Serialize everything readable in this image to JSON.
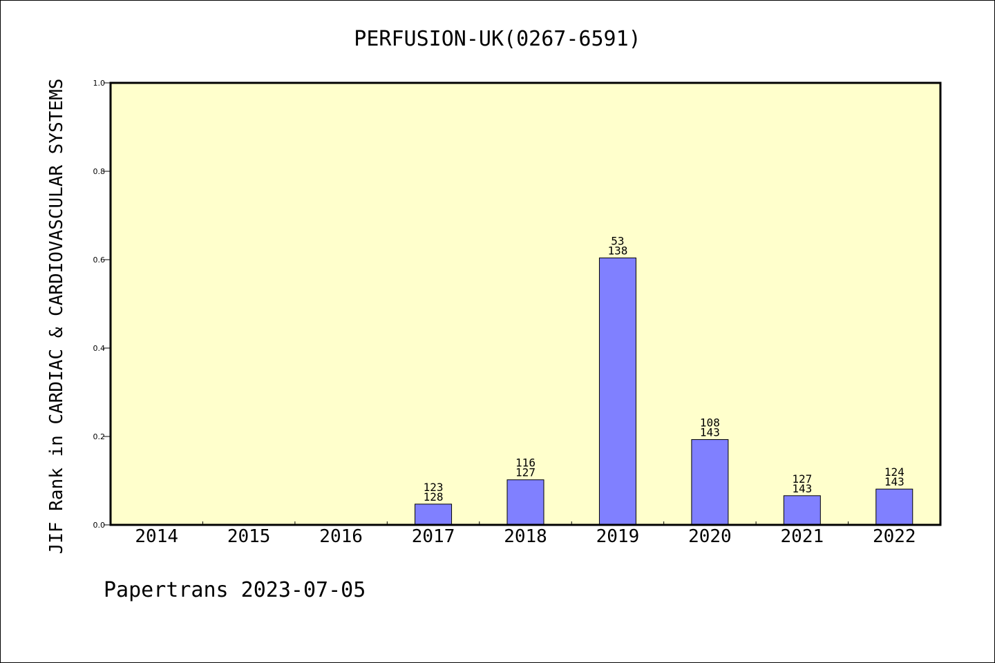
{
  "chart_data": {
    "type": "bar",
    "title": "PERFUSION-UK(0267-6591)",
    "xlabel": "",
    "ylabel": "JIF Rank in CARDIAC & CARDIOVASCULAR SYSTEMS",
    "categories": [
      "2014",
      "2015",
      "2016",
      "2017",
      "2018",
      "2019",
      "2020",
      "2021",
      "2022"
    ],
    "values": [
      null,
      null,
      null,
      0.047,
      0.102,
      0.604,
      0.193,
      0.066,
      0.081
    ],
    "ranks": [
      null,
      null,
      null,
      "123",
      "116",
      "53",
      "108",
      "127",
      "124"
    ],
    "totals": [
      null,
      null,
      null,
      "128",
      "127",
      "138",
      "143",
      "143",
      "143"
    ],
    "ylim": [
      0,
      1.0
    ],
    "yticks": [
      "0.0",
      "0.2",
      "0.4",
      "0.6",
      "0.8",
      "1.0"
    ],
    "ytick_values": [
      0,
      0.2,
      0.4,
      0.6,
      0.8,
      1.0
    ],
    "grid": false,
    "legend": "none",
    "colors": {
      "bar": "#8080ff",
      "plot_background": "#ffffcc",
      "axis": "#000000"
    }
  },
  "footer": {
    "text": "Papertrans 2023-07-05"
  }
}
